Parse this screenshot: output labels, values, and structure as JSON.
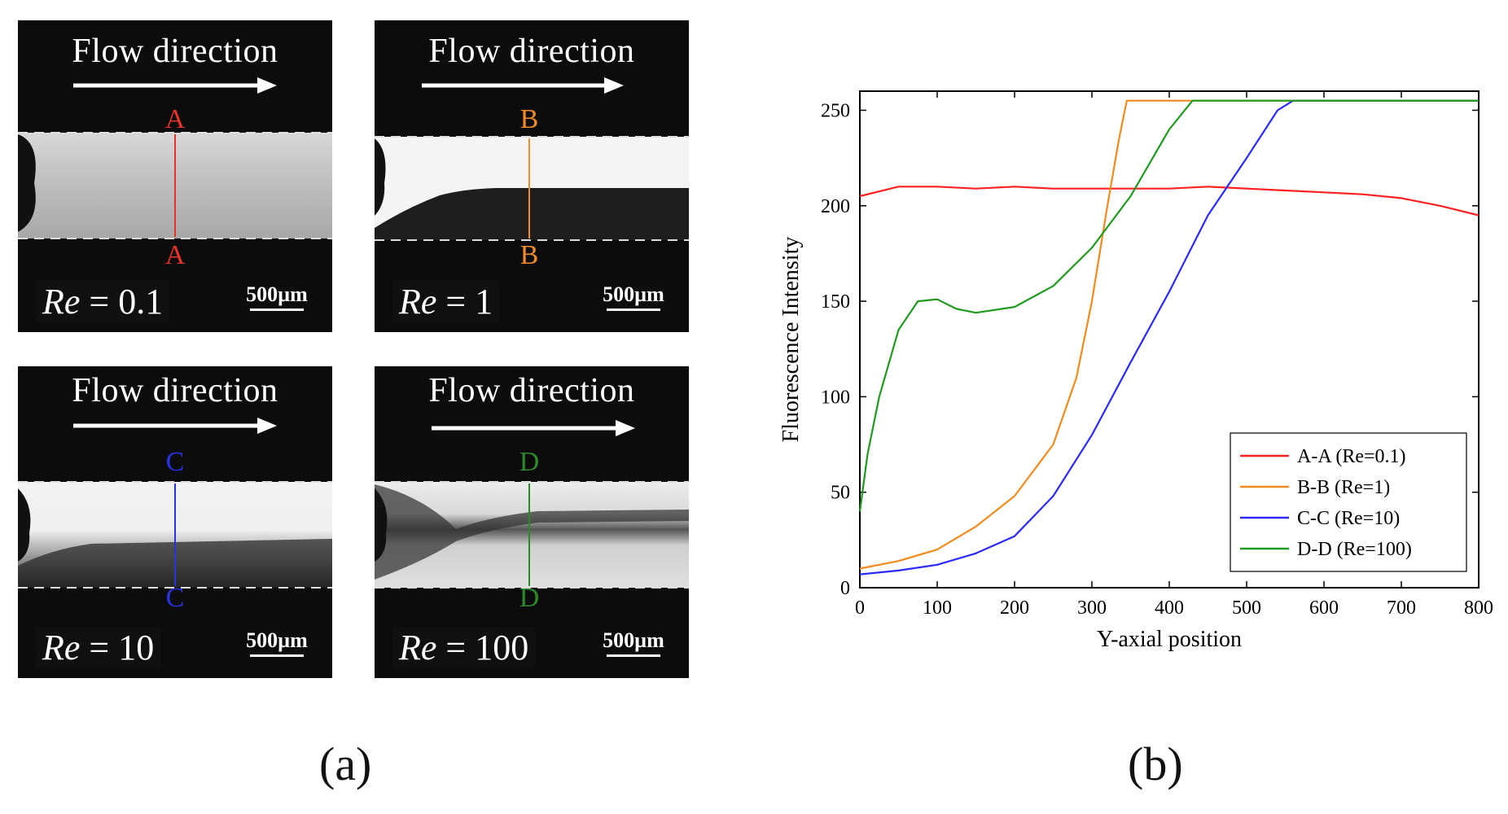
{
  "figure": {
    "panel_a_caption": "(a)",
    "panel_b_caption": "(b)"
  },
  "panels": [
    {
      "flow_label": "Flow direction",
      "re_symbol": "Re",
      "re_value": "= 0.1",
      "section_letter": "A",
      "color": "#e8332a",
      "scale_label": "500µm"
    },
    {
      "flow_label": "Flow direction",
      "re_symbol": "Re",
      "re_value": "= 1",
      "section_letter": "B",
      "color": "#f08a2a",
      "scale_label": "500µm"
    },
    {
      "flow_label": "Flow direction",
      "re_symbol": "Re",
      "re_value": "= 10",
      "section_letter": "C",
      "color": "#2a33e0",
      "scale_label": "500µm"
    },
    {
      "flow_label": "Flow direction",
      "re_symbol": "Re",
      "re_value": "= 100",
      "section_letter": "D",
      "color": "#2a8a2a",
      "scale_label": "500µm"
    }
  ],
  "chart_data": {
    "type": "line",
    "title": "",
    "xlabel": "Y-axial position",
    "ylabel": "Fluorescence Intensity",
    "xlim": [
      0,
      800
    ],
    "ylim": [
      0,
      260
    ],
    "xticks": [
      0,
      100,
      200,
      300,
      400,
      500,
      600,
      700,
      800
    ],
    "yticks": [
      0,
      50,
      100,
      150,
      200,
      250
    ],
    "legend_position": "bottom-right",
    "series": [
      {
        "name": "A-A (Re=0.1)",
        "color": "#ff2020",
        "x": [
          0,
          50,
          100,
          150,
          200,
          250,
          300,
          350,
          400,
          450,
          500,
          550,
          600,
          650,
          700,
          750,
          800
        ],
        "y": [
          205,
          210,
          210,
          209,
          210,
          209,
          209,
          209,
          209,
          210,
          209,
          208,
          207,
          206,
          204,
          200,
          195
        ]
      },
      {
        "name": "B-B (Re=1)",
        "color": "#f28a1e",
        "x": [
          0,
          50,
          100,
          150,
          200,
          250,
          280,
          300,
          320,
          335,
          345,
          350,
          400,
          500,
          600,
          700,
          800
        ],
        "y": [
          10,
          14,
          20,
          32,
          48,
          75,
          110,
          150,
          200,
          235,
          255,
          255,
          255,
          255,
          255,
          255,
          255
        ]
      },
      {
        "name": "C-C (Re=10)",
        "color": "#2a2aff",
        "x": [
          0,
          50,
          100,
          150,
          200,
          250,
          300,
          350,
          400,
          450,
          500,
          540,
          560,
          600,
          700,
          800
        ],
        "y": [
          7,
          9,
          12,
          18,
          27,
          48,
          80,
          118,
          155,
          195,
          225,
          250,
          255,
          255,
          255,
          255
        ]
      },
      {
        "name": "D-D (Re=100)",
        "color": "#1f9a1f",
        "x": [
          0,
          10,
          25,
          50,
          75,
          100,
          125,
          150,
          200,
          250,
          300,
          350,
          400,
          430,
          500,
          600,
          700,
          800
        ],
        "y": [
          40,
          70,
          100,
          135,
          150,
          151,
          146,
          144,
          147,
          158,
          178,
          205,
          240,
          255,
          255,
          255,
          255,
          255
        ]
      }
    ]
  }
}
